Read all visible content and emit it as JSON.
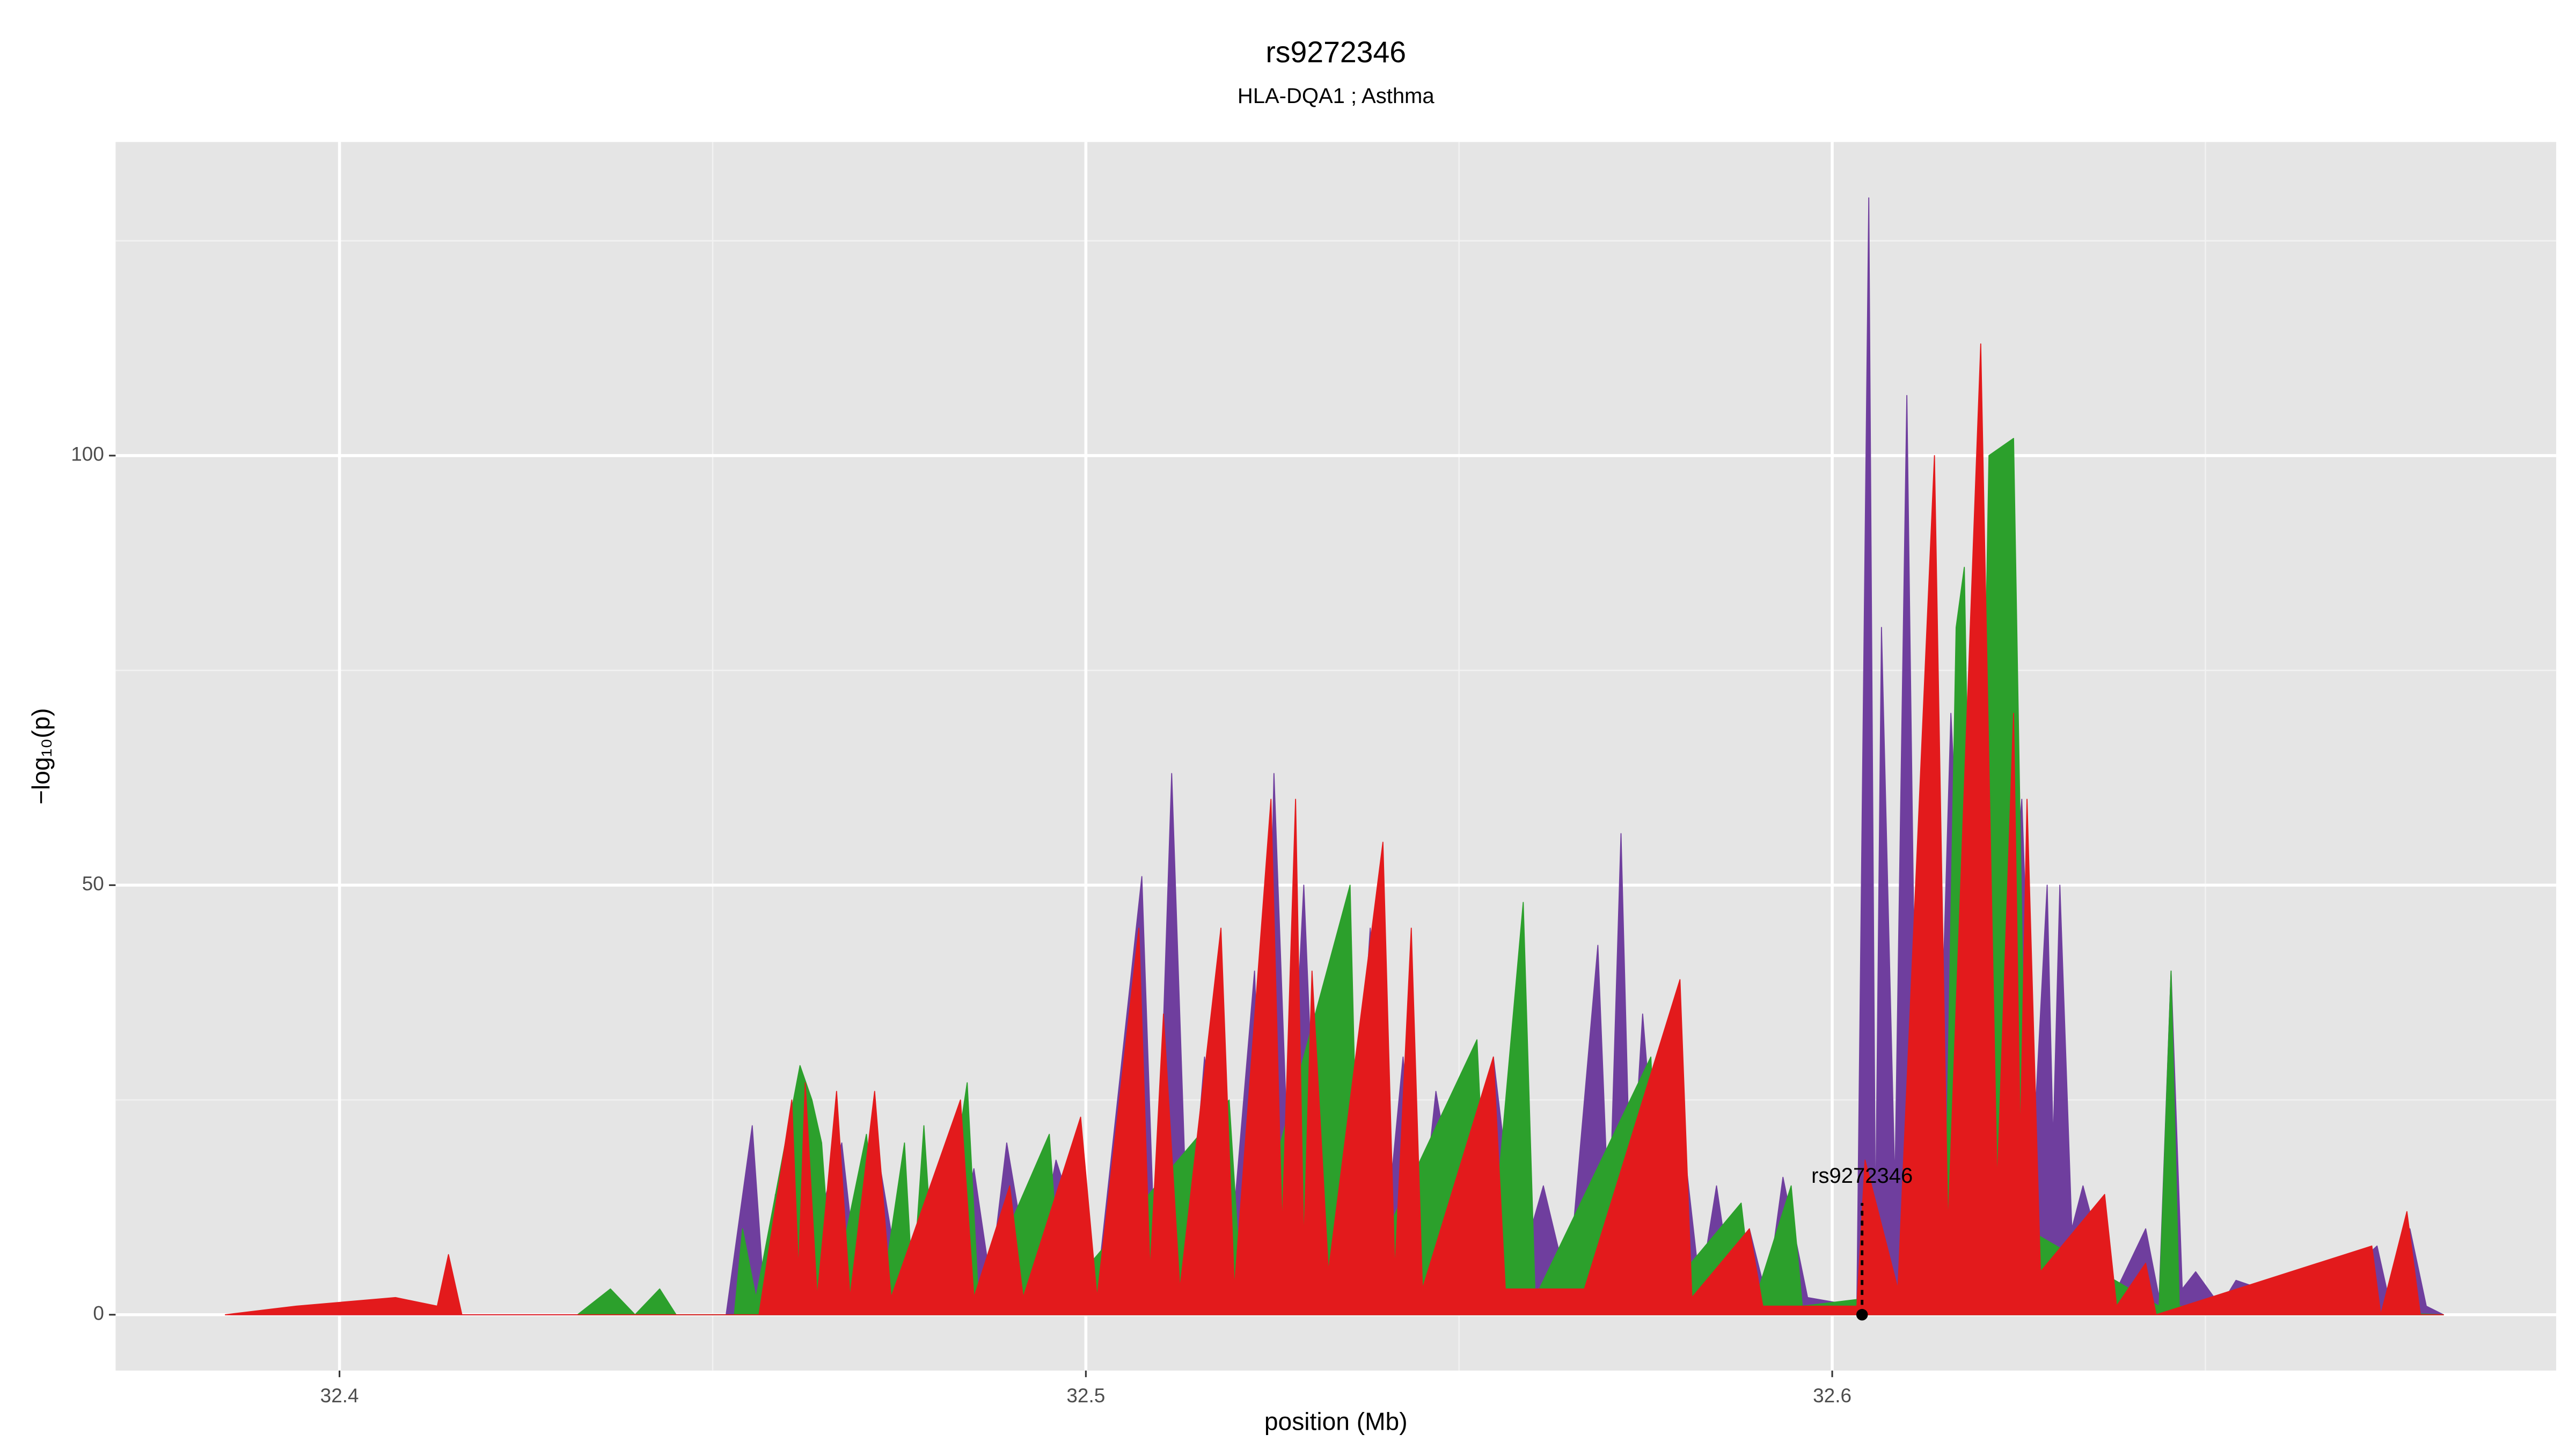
{
  "chart_data": {
    "type": "area",
    "title": "rs9272346",
    "subtitle": "HLA-DQA1 ; Asthma",
    "x_label": "position (Mb)",
    "y_label": "−log₁₀(p)",
    "xlim": [
      32.37,
      32.697
    ],
    "ylim": [
      -6.5,
      136.5
    ],
    "xticks": [
      32.4,
      32.5,
      32.6
    ],
    "yticks": [
      0,
      50,
      100
    ],
    "x_minor_ticks": [
      32.45,
      32.55,
      32.65
    ],
    "y_minor_ticks": [
      25,
      75,
      125
    ],
    "grid": true,
    "annotation": {
      "text": "rs9272346",
      "x": 32.604,
      "y": 0
    },
    "series": [
      {
        "color": "#6f3e9e",
        "x": [
          32.3854,
          32.4518,
          32.4553,
          32.4569,
          32.4584,
          32.4606,
          32.4673,
          32.4695,
          32.4717,
          32.475,
          32.4783,
          32.4816,
          32.485,
          32.4872,
          32.4894,
          32.4927,
          32.496,
          32.5015,
          32.5075,
          32.5093,
          32.5115,
          32.5137,
          32.5159,
          32.5192,
          32.5226,
          32.5239,
          32.5252,
          32.5272,
          32.5292,
          32.531,
          32.5325,
          32.5354,
          32.5381,
          32.5403,
          32.5425,
          32.5447,
          32.5469,
          32.5509,
          32.5546,
          32.558,
          32.5613,
          32.5646,
          32.5686,
          32.5701,
          32.5717,
          32.573,
          32.5746,
          32.5774,
          32.5801,
          32.5823,
          32.5845,
          32.5867,
          32.5889,
          32.5912,
          32.5934,
          32.5967,
          32.6033,
          32.6049,
          32.6058,
          32.6066,
          32.6084,
          32.61,
          32.6113,
          32.6128,
          32.6144,
          32.6159,
          32.6181,
          32.6199,
          32.6226,
          32.6254,
          32.627,
          32.6288,
          32.6296,
          32.6305,
          32.6321,
          32.6336,
          32.6376,
          32.642,
          32.6438,
          32.6454,
          32.6469,
          32.6487,
          32.652,
          32.6541,
          32.6642,
          32.673,
          32.6748,
          32.6774,
          32.6796,
          32.6819
        ],
        "values": [
          0,
          0,
          22,
          2,
          14,
          1,
          20,
          3,
          21,
          4,
          12,
          3,
          17,
          4,
          20,
          3,
          18,
          3,
          51,
          5,
          63,
          6,
          30,
          5,
          40,
          10,
          63,
          15,
          50,
          12,
          35,
          8,
          45,
          10,
          30,
          8,
          26,
          6,
          30,
          5,
          15,
          3,
          43,
          10,
          56,
          12,
          35,
          5,
          20,
          3,
          15,
          2,
          10,
          2,
          16,
          2,
          1,
          130,
          10,
          80,
          15,
          107,
          20,
          72,
          25,
          70,
          30,
          90,
          30,
          60,
          20,
          50,
          20,
          50,
          10,
          15,
          2,
          10,
          2,
          40,
          3,
          5,
          1,
          4,
          1,
          8,
          1,
          10,
          1,
          0
        ]
      },
      {
        "color": "#2ca02c",
        "x": [
          32.4319,
          32.4363,
          32.4396,
          32.4429,
          32.4451,
          32.4529,
          32.454,
          32.4558,
          32.4617,
          32.4633,
          32.4646,
          32.4661,
          32.4706,
          32.4728,
          32.4757,
          32.4768,
          32.4783,
          32.4798,
          32.4841,
          32.4856,
          32.4951,
          32.4967,
          32.5192,
          32.5208,
          32.5354,
          32.5367,
          32.5524,
          32.554,
          32.5586,
          32.5602,
          32.5757,
          32.5772,
          32.5878,
          32.5894,
          32.5945,
          32.596,
          32.615,
          32.6166,
          32.6177,
          32.6192,
          32.621,
          32.6243,
          32.6261,
          32.6438,
          32.6454,
          32.6465,
          32.6819
        ],
        "values": [
          0,
          3,
          0,
          3,
          0,
          0,
          10,
          2,
          29,
          25,
          20,
          2,
          21,
          3,
          20,
          3,
          22,
          2,
          27,
          2,
          21,
          2,
          25,
          3,
          50,
          3,
          32,
          3,
          48,
          2,
          30,
          2,
          13,
          1,
          15,
          1,
          3,
          80,
          87,
          10,
          100,
          102,
          10,
          1,
          40,
          1,
          0
        ]
      },
      {
        "color": "#e31a1c",
        "x": [
          32.3847,
          32.3942,
          32.4075,
          32.4131,
          32.4146,
          32.4164,
          32.4562,
          32.4606,
          32.4615,
          32.4624,
          32.464,
          32.4666,
          32.4684,
          32.4717,
          32.4739,
          32.4832,
          32.485,
          32.4898,
          32.4916,
          32.4993,
          32.5015,
          32.5071,
          32.5086,
          32.5104,
          32.5126,
          32.5181,
          32.5199,
          32.5248,
          32.5263,
          32.5281,
          32.5292,
          32.5303,
          32.5325,
          32.5398,
          32.5414,
          32.5436,
          32.5451,
          32.5546,
          32.5562,
          32.5668,
          32.5796,
          32.5812,
          32.5889,
          32.5907,
          32.6033,
          32.6044,
          32.6088,
          32.6137,
          32.6155,
          32.6199,
          32.6221,
          32.6243,
          32.6252,
          32.6261,
          32.6279,
          32.6365,
          32.6381,
          32.642,
          32.6434,
          32.6723,
          32.6735,
          32.677,
          32.6788,
          32.6819
        ],
        "values": [
          0,
          1,
          2,
          1,
          7,
          0,
          0,
          25,
          5,
          27,
          2,
          26,
          2,
          26,
          2,
          25,
          2,
          15,
          2,
          23,
          2,
          45,
          5,
          35,
          3,
          45,
          3,
          60,
          10,
          60,
          8,
          40,
          5,
          55,
          5,
          45,
          3,
          30,
          3,
          3,
          39,
          2,
          10,
          1,
          1,
          18,
          3,
          100,
          10,
          113,
          15,
          70,
          20,
          60,
          5,
          14,
          1,
          6,
          0,
          8,
          0,
          12,
          0,
          0
        ]
      }
    ]
  }
}
